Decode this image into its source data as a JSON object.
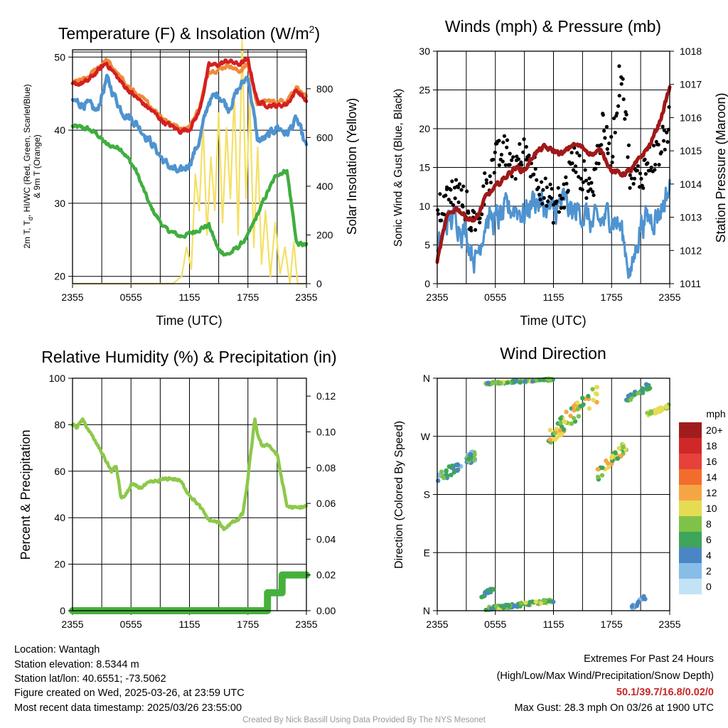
{
  "colors": {
    "red": "#d42020",
    "orange": "#f08a3c",
    "blue": "#4f93d0",
    "green": "#3fae3f",
    "yellow": "#f4e066",
    "maroon": "#a01818",
    "rh": "#8dc84a",
    "precip": "#45b13c",
    "grid": "#000000"
  },
  "chart_data": [
    {
      "type": "line",
      "title": "Temperature (F) & Insolation (W/m²)",
      "xlabel": "Time (UTC)",
      "ylabel": "2m T, Td, HI/WC (Red, Green, Scarlet/Blue) & 9m T (Orange)",
      "ylabel_line1": "2m T, T",
      "ylabel_sub": "d",
      "ylabel_line1_rest": ", HI/WC (Red, Green, Scarlet/Blue)",
      "ylabel_line2": "& 9m T (Orange)",
      "y2label": "Solar Insolation (Yellow)",
      "x_ticks": [
        "2355",
        "0555",
        "1155",
        "1755",
        "2355"
      ],
      "ylim": [
        19,
        51
      ],
      "y_ticks": [
        20,
        30,
        40,
        50
      ],
      "y2lim": [
        0,
        960
      ],
      "y2_ticks": [
        0,
        200,
        400,
        600,
        800
      ],
      "grid": true,
      "x": [
        0,
        1.5,
        2.5,
        3.5,
        5,
        6.5,
        8,
        9.5,
        11,
        12,
        13,
        14,
        15,
        16,
        17,
        18,
        19,
        20,
        21,
        22,
        23,
        24
      ],
      "series": [
        {
          "name": "9m T",
          "color": "orange",
          "axis": "left",
          "values": [
            46.5,
            47.0,
            48.5,
            49.6,
            47.0,
            45.0,
            43.3,
            41.5,
            40.2,
            40.5,
            43.0,
            48.2,
            48.3,
            49.0,
            48.0,
            49.0,
            43.5,
            44.0,
            43.8,
            44.2,
            46.0,
            44.3
          ]
        },
        {
          "name": "2m T",
          "color": "red",
          "axis": "left",
          "values": [
            46.2,
            46.6,
            48.0,
            49.2,
            46.5,
            44.5,
            42.8,
            41.0,
            39.9,
            40.2,
            42.5,
            48.8,
            49.0,
            49.5,
            49.0,
            49.6,
            43.8,
            43.5,
            43.3,
            43.6,
            45.5,
            44.0
          ]
        },
        {
          "name": "HI/WC",
          "color": "blue",
          "axis": "left",
          "values": [
            44.0,
            43.5,
            42.5,
            47.0,
            42.8,
            41.0,
            38.5,
            35.5,
            34.0,
            35.5,
            38.5,
            44.0,
            45.0,
            43.0,
            45.5,
            47.5,
            38.5,
            39.0,
            40.5,
            39.5,
            41.5,
            37.5
          ]
        },
        {
          "name": "Td",
          "color": "green",
          "axis": "left",
          "values": [
            40.5,
            40.2,
            39.5,
            38.0,
            37.5,
            34.5,
            29.5,
            26.5,
            25.5,
            25.8,
            26.5,
            27.0,
            23.5,
            23.0,
            24.0,
            25.5,
            28.5,
            31.5,
            34.0,
            34.5,
            24.5,
            24.2
          ]
        },
        {
          "name": "Solar",
          "color": "yellow",
          "axis": "right",
          "x": [
            0,
            3,
            6,
            9,
            10.3,
            11.2,
            11.7,
            12.2,
            12.6,
            13.0,
            13.4,
            13.8,
            14.2,
            14.6,
            15.0,
            15.4,
            15.8,
            16.2,
            16.6,
            17.0,
            17.4,
            17.8,
            18.2,
            18.6,
            19.0,
            19.4,
            19.8,
            20.3,
            20.8,
            21.3,
            21.8,
            22.3,
            22.7,
            23.1,
            24
          ],
          "values": [
            0,
            0,
            0,
            0,
            0,
            30,
            150,
            60,
            450,
            300,
            650,
            200,
            520,
            300,
            700,
            250,
            640,
            350,
            780,
            200,
            1000,
            350,
            750,
            150,
            560,
            80,
            300,
            30,
            250,
            40,
            150,
            0,
            170,
            0,
            0
          ]
        }
      ]
    },
    {
      "type": "line",
      "title": "Winds (mph) & Pressure (mb)",
      "xlabel": "Time (UTC)",
      "ylabel": "Sonic Wind & Gust (Blue, Black)",
      "y2label": "Station Pressure (Maroon)",
      "x_ticks": [
        "2355",
        "0555",
        "1155",
        "1755",
        "2355"
      ],
      "ylim": [
        0,
        30
      ],
      "y_ticks": [
        0,
        5,
        10,
        15,
        20,
        25,
        30
      ],
      "y2lim": [
        1011,
        1018
      ],
      "y2_ticks": [
        1011,
        1012,
        1013,
        1014,
        1015,
        1016,
        1017,
        1018
      ],
      "grid": true,
      "x": [
        0,
        1,
        2,
        3,
        4,
        5,
        6,
        7,
        8,
        9,
        10,
        11,
        12,
        13,
        14,
        15,
        16,
        17,
        18,
        19,
        20,
        21,
        22,
        23,
        24
      ],
      "series": [
        {
          "name": "Sonic Wind",
          "color": "blue",
          "axis": "left",
          "values": [
            3.5,
            8,
            8.5,
            6.5,
            3,
            8.5,
            8,
            9,
            10,
            9,
            11,
            10,
            9,
            10.5,
            9,
            9.5,
            7.5,
            8,
            9,
            7,
            1,
            8,
            8.5,
            9.5,
            12.5
          ]
        },
        {
          "name": "Gust",
          "color": "black",
          "axis": "left",
          "values": [
            9,
            11,
            12,
            10,
            7,
            13,
            16,
            17,
            15,
            17,
            15,
            12,
            10,
            11,
            16,
            14,
            12,
            20,
            17,
            28.3,
            13,
            14,
            16,
            17,
            21
          ]
        },
        {
          "name": "Station Pressure",
          "color": "maroon",
          "axis": "right",
          "values": [
            1011.7,
            1013.0,
            1013.3,
            1013.0,
            1012.9,
            1013.6,
            1013.9,
            1014.2,
            1014.5,
            1014.4,
            1014.9,
            1015.1,
            1015.0,
            1014.9,
            1015.2,
            1015.1,
            1014.9,
            1015.0,
            1014.4,
            1014.3,
            1014.4,
            1014.8,
            1015.2,
            1015.9,
            1016.9
          ]
        }
      ]
    },
    {
      "type": "line",
      "title": "Relative Humidity (%) & Precipitation (in)",
      "xlabel": "",
      "ylabel": "Percent & Precipitation",
      "x_ticks": [
        "2355",
        "0555",
        "1155",
        "1755",
        "2355"
      ],
      "ylim": [
        0,
        100
      ],
      "y_ticks": [
        0,
        20,
        40,
        60,
        80,
        100
      ],
      "y2lim": [
        0,
        0.13
      ],
      "y2_ticks": [
        "0.00",
        "0.02",
        "0.04",
        "0.06",
        "0.08",
        "0.10",
        "0.12"
      ],
      "grid": true,
      "series": [
        {
          "name": "RH",
          "color": "rh",
          "axis": "left",
          "x": [
            0,
            0.5,
            1,
            1.5,
            2,
            3,
            4,
            4.5,
            5,
            5.5,
            6,
            7,
            8,
            9,
            10,
            11,
            12,
            13,
            14,
            15,
            15.5,
            16,
            17,
            17.5,
            18,
            18.7,
            19,
            19.5,
            20,
            21,
            22,
            23,
            24
          ],
          "values": [
            80,
            79,
            82,
            79,
            75,
            68,
            60,
            62,
            48,
            50,
            54,
            53,
            55,
            56,
            57,
            56,
            50,
            45,
            39,
            38,
            35,
            37,
            39,
            42,
            57,
            82,
            76,
            70,
            72,
            67,
            45,
            44,
            45
          ]
        },
        {
          "name": "Precipitation",
          "color": "precip",
          "axis": "right",
          "x": [
            0,
            20.0,
            20.01,
            21.5,
            21.51,
            24
          ],
          "values": [
            0,
            0,
            0.01,
            0.01,
            0.02,
            0.02
          ]
        }
      ]
    },
    {
      "type": "scatter",
      "title": "Wind Direction",
      "xlabel": "",
      "ylabel": "Direction (Colored By Speed)",
      "x_ticks": [
        "2355",
        "0555",
        "1155",
        "1755",
        "2355"
      ],
      "ylim": [
        0,
        360
      ],
      "y_ticks": [
        "N",
        "E",
        "S",
        "W",
        "N"
      ],
      "grid": true,
      "colorbar": {
        "label": "mph",
        "levels": [
          "20+",
          "18",
          "16",
          "14",
          "12",
          "10",
          "8",
          "6",
          "4",
          "2",
          "0"
        ],
        "colors": [
          "#a01d1d",
          "#d02828",
          "#e6413a",
          "#f26d2d",
          "#f6a545",
          "#e5dc52",
          "#7fc24a",
          "#3ea55a",
          "#4a86c6",
          "#87bde6",
          "#c2e3f6"
        ]
      },
      "clusters": [
        {
          "x0": 0,
          "x1": 4,
          "d0": 196,
          "d1": 250,
          "speeds": [
            3,
            9
          ]
        },
        {
          "x0": 5,
          "x1": 12,
          "d0": 350,
          "d1": 360,
          "speeds": [
            5,
            11
          ]
        },
        {
          "x0": 5,
          "x1": 12,
          "d0": 0,
          "d1": 18,
          "speeds": [
            5,
            11
          ]
        },
        {
          "x0": 4.5,
          "x1": 6,
          "d0": 18,
          "d1": 40,
          "speeds": [
            4,
            8
          ]
        },
        {
          "x0": 11.5,
          "x1": 16.5,
          "d0": 255,
          "d1": 350,
          "speeds": [
            6,
            14
          ]
        },
        {
          "x0": 16.5,
          "x1": 19.5,
          "d0": 200,
          "d1": 265,
          "speeds": [
            6,
            14
          ]
        },
        {
          "x0": 19.5,
          "x1": 22,
          "d0": 320,
          "d1": 355,
          "speeds": [
            4,
            9
          ]
        },
        {
          "x0": 21.5,
          "x1": 24,
          "d0": 300,
          "d1": 320,
          "speeds": [
            9,
            12
          ]
        },
        {
          "x0": 20,
          "x1": 21.5,
          "d0": 0,
          "d1": 25,
          "speeds": [
            3,
            6
          ]
        }
      ]
    }
  ],
  "footer": {
    "location": "Location: Wantagh",
    "elevation": "Station elevation: 8.5344 m",
    "latlon": "Station lat/lon: 40.6551; -73.5062",
    "created": "Figure created on Wed, 2025-03-26, at 23:59 UTC",
    "recent": "Most recent data timestamp: 2025/03/26 23:55:00",
    "extremes_title": "Extremes For Past 24 Hours",
    "extremes_sub": "(High/Low/Max Wind/Precipitation/Snow Depth)",
    "extremes_values": "50.1/39.7/16.8/0.02/0",
    "max_gust": "Max Gust: 28.3 mph On 03/26 at 1900 UTC",
    "credit": "Created By Nick Bassill Using Data Provided By The NYS Mesonet"
  }
}
